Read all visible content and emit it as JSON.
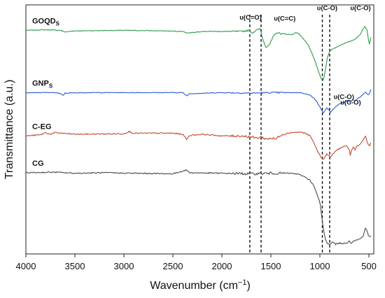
{
  "chart_data": {
    "type": "line",
    "xlabel": "Wavenumber (cm",
    "xlabel_sup": "−1",
    "xlabel_close": ")",
    "ylabel": "Transmittance (a.u.)",
    "xlim": [
      4000,
      450
    ],
    "x_reversed": true,
    "ylim": [
      0,
      4.6
    ],
    "grid": false,
    "y_tick_labels": false,
    "x_ticks": [
      4000,
      3500,
      3000,
      2500,
      2000,
      1500,
      1000,
      500
    ],
    "series": [
      {
        "name": "GOQDs",
        "label_main": "GOQD",
        "label_sub": "S",
        "color": "#2e9a4e",
        "noise": 0.012,
        "points": [
          [
            4000,
            4.13
          ],
          [
            3800,
            4.14
          ],
          [
            3650,
            4.13
          ],
          [
            3600,
            4.1
          ],
          [
            3500,
            4.12
          ],
          [
            3000,
            4.13
          ],
          [
            2600,
            4.12
          ],
          [
            2400,
            4.11
          ],
          [
            2350,
            4.08
          ],
          [
            2200,
            4.11
          ],
          [
            2000,
            4.11
          ],
          [
            1800,
            4.11
          ],
          [
            1760,
            4.12
          ],
          [
            1720,
            4.13
          ],
          [
            1690,
            4.08
          ],
          [
            1650,
            4.13
          ],
          [
            1610,
            4.16
          ],
          [
            1580,
            3.95
          ],
          [
            1550,
            3.82
          ],
          [
            1510,
            3.88
          ],
          [
            1480,
            4.0
          ],
          [
            1440,
            4.09
          ],
          [
            1400,
            4.07
          ],
          [
            1350,
            4.06
          ],
          [
            1300,
            4.05
          ],
          [
            1270,
            4.06
          ],
          [
            1240,
            4.09
          ],
          [
            1210,
            4.06
          ],
          [
            1180,
            4.0
          ],
          [
            1120,
            3.86
          ],
          [
            1080,
            3.7
          ],
          [
            1040,
            3.52
          ],
          [
            1010,
            3.34
          ],
          [
            990,
            3.25
          ],
          [
            970,
            3.2
          ],
          [
            955,
            3.28
          ],
          [
            940,
            3.45
          ],
          [
            920,
            3.65
          ],
          [
            900,
            3.74
          ],
          [
            880,
            3.78
          ],
          [
            850,
            3.8
          ],
          [
            800,
            3.85
          ],
          [
            750,
            3.89
          ],
          [
            700,
            3.92
          ],
          [
            650,
            3.96
          ],
          [
            610,
            4.01
          ],
          [
            580,
            4.08
          ],
          [
            560,
            4.16
          ],
          [
            540,
            4.2
          ],
          [
            520,
            4.14
          ],
          [
            505,
            3.96
          ],
          [
            495,
            3.88
          ],
          [
            480,
            4.0
          ]
        ]
      },
      {
        "name": "GNPs",
        "label_main": "GNP",
        "label_sub": "S",
        "color": "#2a5bd0",
        "noise": 0.012,
        "points": [
          [
            4000,
            2.98
          ],
          [
            3700,
            2.98
          ],
          [
            3650,
            2.96
          ],
          [
            3620,
            2.93
          ],
          [
            3600,
            2.97
          ],
          [
            3400,
            2.98
          ],
          [
            2800,
            2.98
          ],
          [
            2400,
            2.98
          ],
          [
            2360,
            2.92
          ],
          [
            2330,
            2.96
          ],
          [
            2000,
            2.98
          ],
          [
            1700,
            2.97
          ],
          [
            1500,
            2.98
          ],
          [
            1300,
            2.98
          ],
          [
            1200,
            2.98
          ],
          [
            1150,
            2.96
          ],
          [
            1100,
            2.93
          ],
          [
            1060,
            2.88
          ],
          [
            1030,
            2.8
          ],
          [
            1000,
            2.72
          ],
          [
            980,
            2.64
          ],
          [
            965,
            2.61
          ],
          [
            950,
            2.64
          ],
          [
            930,
            2.7
          ],
          [
            910,
            2.66
          ],
          [
            890,
            2.61
          ],
          [
            870,
            2.66
          ],
          [
            840,
            2.72
          ],
          [
            800,
            2.77
          ],
          [
            750,
            2.81
          ],
          [
            710,
            2.84
          ],
          [
            690,
            2.79
          ],
          [
            670,
            2.85
          ],
          [
            640,
            2.83
          ],
          [
            610,
            2.88
          ],
          [
            580,
            2.91
          ],
          [
            550,
            2.97
          ],
          [
            530,
            2.99
          ],
          [
            510,
            2.94
          ],
          [
            495,
            2.96
          ],
          [
            480,
            3.04
          ]
        ]
      },
      {
        "name": "C-EG",
        "label_main": "C-EG",
        "label_sub": "",
        "color": "#c04a33",
        "noise": 0.02,
        "points": [
          [
            4000,
            2.18
          ],
          [
            3850,
            2.2
          ],
          [
            3800,
            2.24
          ],
          [
            3750,
            2.21
          ],
          [
            3700,
            2.24
          ],
          [
            3500,
            2.21
          ],
          [
            3000,
            2.22
          ],
          [
            2950,
            2.26
          ],
          [
            2900,
            2.23
          ],
          [
            2500,
            2.23
          ],
          [
            2400,
            2.21
          ],
          [
            2360,
            2.12
          ],
          [
            2330,
            2.19
          ],
          [
            2200,
            2.21
          ],
          [
            2000,
            2.18
          ],
          [
            1800,
            2.18
          ],
          [
            1700,
            2.16
          ],
          [
            1650,
            2.14
          ],
          [
            1600,
            2.16
          ],
          [
            1550,
            2.12
          ],
          [
            1500,
            2.14
          ],
          [
            1450,
            2.12
          ],
          [
            1400,
            2.2
          ],
          [
            1300,
            2.24
          ],
          [
            1200,
            2.25
          ],
          [
            1150,
            2.23
          ],
          [
            1100,
            2.18
          ],
          [
            1060,
            2.05
          ],
          [
            1030,
            1.92
          ],
          [
            1000,
            1.82
          ],
          [
            980,
            1.77
          ],
          [
            960,
            1.75
          ],
          [
            945,
            1.8
          ],
          [
            930,
            1.85
          ],
          [
            915,
            1.82
          ],
          [
            890,
            1.79
          ],
          [
            870,
            1.84
          ],
          [
            840,
            1.9
          ],
          [
            800,
            1.95
          ],
          [
            760,
            1.98
          ],
          [
            720,
            1.99
          ],
          [
            700,
            1.92
          ],
          [
            690,
            1.82
          ],
          [
            680,
            1.9
          ],
          [
            660,
            1.97
          ],
          [
            640,
            1.93
          ],
          [
            620,
            2.0
          ],
          [
            590,
            2.02
          ],
          [
            570,
            2.08
          ],
          [
            550,
            2.12
          ],
          [
            535,
            2.18
          ],
          [
            520,
            2.07
          ],
          [
            505,
            2.02
          ],
          [
            490,
            2.0
          ],
          [
            480,
            2.05
          ]
        ]
      },
      {
        "name": "CG",
        "label_main": "CG",
        "label_sub": "",
        "color": "#4a4a4a",
        "noise": 0.02,
        "points": [
          [
            4000,
            1.5
          ],
          [
            3700,
            1.51
          ],
          [
            3500,
            1.49
          ],
          [
            3200,
            1.5
          ],
          [
            2900,
            1.49
          ],
          [
            2500,
            1.48
          ],
          [
            2360,
            1.55
          ],
          [
            2330,
            1.5
          ],
          [
            2000,
            1.49
          ],
          [
            1700,
            1.48
          ],
          [
            1500,
            1.49
          ],
          [
            1300,
            1.49
          ],
          [
            1250,
            1.48
          ],
          [
            1200,
            1.46
          ],
          [
            1150,
            1.42
          ],
          [
            1100,
            1.36
          ],
          [
            1060,
            1.25
          ],
          [
            1030,
            1.1
          ],
          [
            1010,
            1.0
          ],
          [
            995,
            0.9
          ],
          [
            985,
            0.75
          ],
          [
            975,
            0.6
          ],
          [
            960,
            0.42
          ],
          [
            945,
            0.28
          ],
          [
            925,
            0.2
          ],
          [
            900,
            0.18
          ],
          [
            870,
            0.22
          ],
          [
            840,
            0.18
          ],
          [
            800,
            0.2
          ],
          [
            760,
            0.19
          ],
          [
            720,
            0.21
          ],
          [
            700,
            0.24
          ],
          [
            680,
            0.2
          ],
          [
            660,
            0.24
          ],
          [
            620,
            0.26
          ],
          [
            590,
            0.28
          ],
          [
            560,
            0.32
          ],
          [
            545,
            0.43
          ],
          [
            535,
            0.48
          ],
          [
            520,
            0.42
          ],
          [
            505,
            0.34
          ],
          [
            490,
            0.32
          ],
          [
            480,
            0.33
          ]
        ]
      }
    ],
    "reference_lines": [
      1715,
      1600,
      975,
      900
    ],
    "annotations": [
      {
        "text": "υ(C=O)",
        "wn": 1820,
        "y": 4.33
      },
      {
        "text": "υ(C=C)",
        "wn": 1470,
        "y": 4.31
      },
      {
        "text": "υ(C-O)",
        "wn": 1030,
        "y": 4.5
      },
      {
        "text": "υ(C-O)",
        "wn": 690,
        "y": 4.5
      },
      {
        "text": "υ(C-O)",
        "wn": 860,
        "y": 2.86
      },
      {
        "text": "υ(C-O)",
        "wn": 790,
        "y": 2.76
      }
    ]
  }
}
